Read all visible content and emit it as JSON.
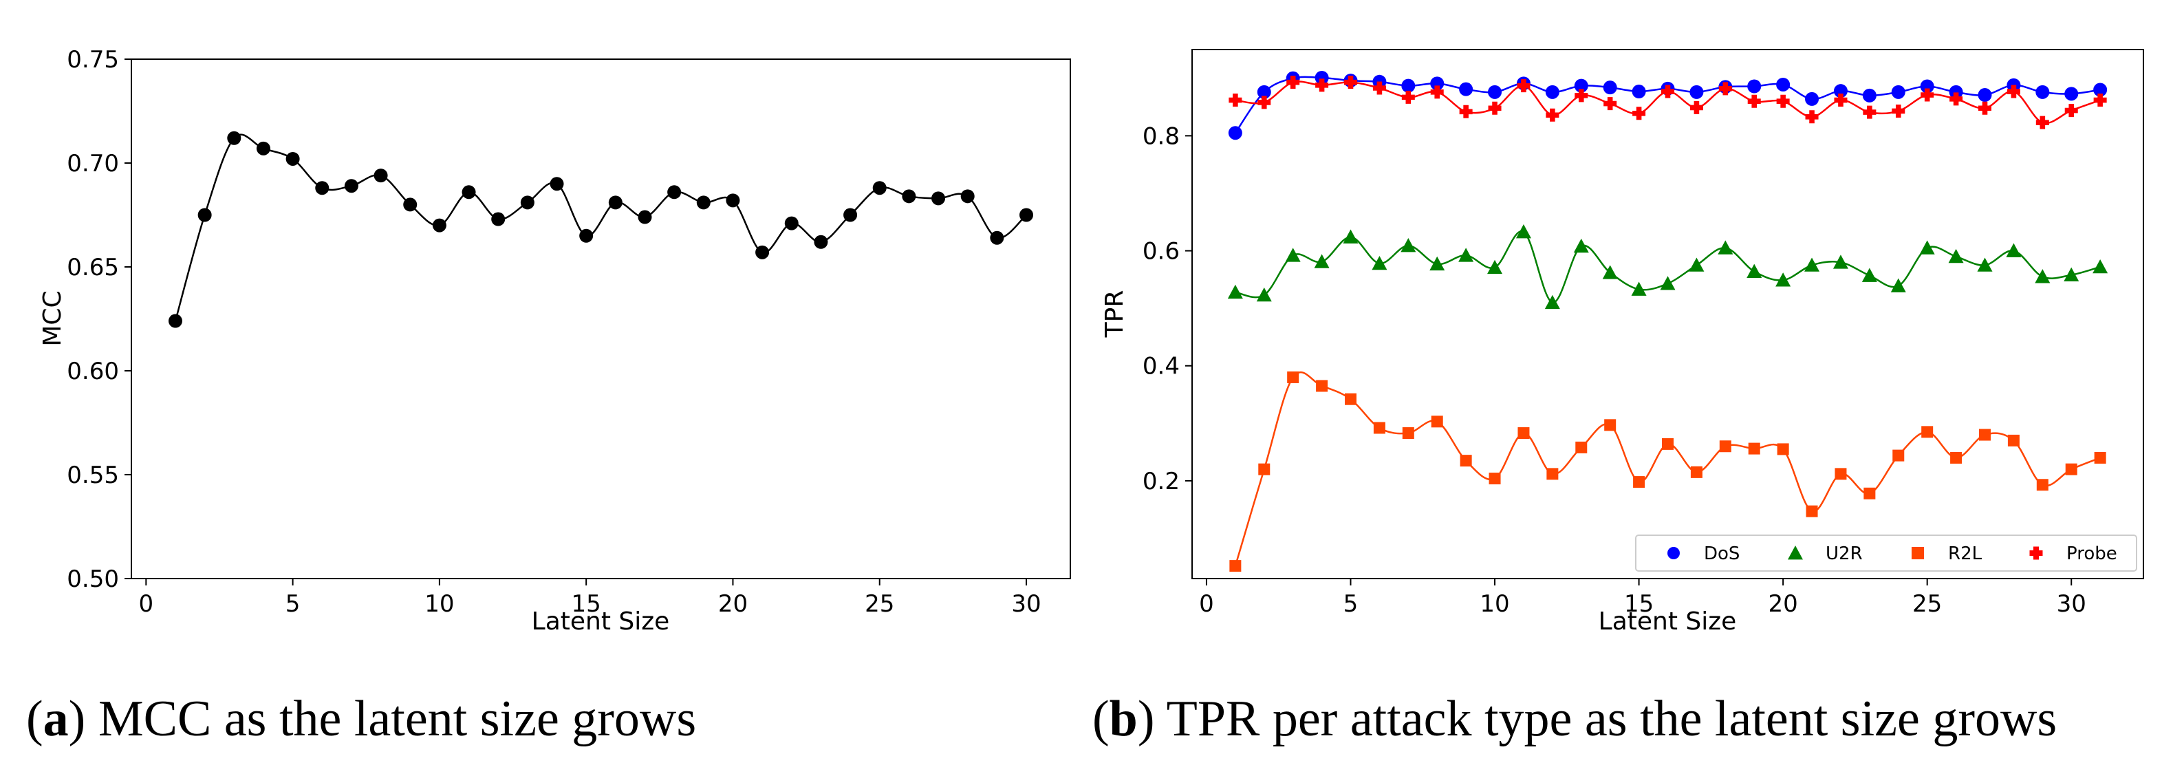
{
  "chart_data": [
    {
      "type": "line",
      "caption_letter": "a",
      "caption_text": "MCC as the latent size grows",
      "xlabel": "Latent Size",
      "ylabel": "MCC",
      "xlim": [
        -0.5,
        31.5
      ],
      "ylim": [
        0.5,
        0.75
      ],
      "xticks": [
        0,
        5,
        10,
        15,
        20,
        25,
        30
      ],
      "yticks": [
        0.5,
        0.55,
        0.6,
        0.65,
        0.7,
        0.75
      ],
      "ytick_labels": [
        "0.50",
        "0.55",
        "0.60",
        "0.65",
        "0.70",
        "0.75"
      ],
      "series": [
        {
          "name": "MCC",
          "color": "#000000",
          "marker": "circle",
          "x": [
            1,
            2,
            3,
            4,
            5,
            6,
            7,
            8,
            9,
            10,
            11,
            12,
            13,
            14,
            15,
            16,
            17,
            18,
            19,
            20,
            21,
            22,
            23,
            24,
            25,
            26,
            27,
            28,
            29,
            30
          ],
          "values": [
            0.624,
            0.675,
            0.712,
            0.707,
            0.702,
            0.688,
            0.689,
            0.694,
            0.68,
            0.67,
            0.686,
            0.673,
            0.681,
            0.69,
            0.665,
            0.681,
            0.674,
            0.686,
            0.681,
            0.682,
            0.657,
            0.671,
            0.662,
            0.675,
            0.688,
            0.684,
            0.683,
            0.684,
            0.664,
            0.675
          ]
        }
      ]
    },
    {
      "type": "line",
      "caption_letter": "b",
      "caption_text": "TPR per attack type as the latent size grows",
      "xlabel": "Latent Size",
      "ylabel": "TPR",
      "xlim": [
        -0.5,
        32.5
      ],
      "ylim": [
        0.03,
        0.95
      ],
      "xticks": [
        0,
        5,
        10,
        15,
        20,
        25,
        30
      ],
      "yticks": [
        0.2,
        0.4,
        0.6,
        0.8
      ],
      "ytick_labels": [
        "0.2",
        "0.4",
        "0.6",
        "0.8"
      ],
      "legend": "lower-right",
      "series": [
        {
          "name": "DoS",
          "color": "#0000ff",
          "marker": "circle",
          "x": [
            1,
            2,
            3,
            4,
            5,
            6,
            7,
            8,
            9,
            10,
            11,
            12,
            13,
            14,
            15,
            16,
            17,
            18,
            19,
            20,
            21,
            22,
            23,
            24,
            25,
            26,
            27,
            28,
            29,
            30,
            31
          ],
          "values": [
            0.805,
            0.876,
            0.9,
            0.901,
            0.896,
            0.894,
            0.887,
            0.891,
            0.881,
            0.876,
            0.891,
            0.876,
            0.887,
            0.884,
            0.877,
            0.882,
            0.876,
            0.885,
            0.886,
            0.889,
            0.864,
            0.878,
            0.87,
            0.876,
            0.886,
            0.876,
            0.871,
            0.888,
            0.876,
            0.873,
            0.88
          ]
        },
        {
          "name": "U2R",
          "color": "#008000",
          "marker": "triangle",
          "x": [
            1,
            2,
            3,
            4,
            5,
            6,
            7,
            8,
            9,
            10,
            11,
            12,
            13,
            14,
            15,
            16,
            17,
            18,
            19,
            20,
            21,
            22,
            23,
            24,
            25,
            26,
            27,
            28,
            29,
            30,
            31
          ],
          "values": [
            0.528,
            0.523,
            0.592,
            0.581,
            0.624,
            0.578,
            0.609,
            0.577,
            0.592,
            0.571,
            0.633,
            0.51,
            0.608,
            0.562,
            0.533,
            0.543,
            0.575,
            0.605,
            0.564,
            0.549,
            0.575,
            0.58,
            0.557,
            0.539,
            0.605,
            0.59,
            0.575,
            0.6,
            0.555,
            0.558,
            0.572
          ]
        },
        {
          "name": "R2L",
          "color": "#ff4500",
          "marker": "square",
          "x": [
            1,
            2,
            3,
            4,
            5,
            6,
            7,
            8,
            9,
            10,
            11,
            12,
            13,
            14,
            15,
            16,
            17,
            18,
            19,
            20,
            21,
            22,
            23,
            24,
            25,
            26,
            27,
            28,
            29,
            30,
            31
          ],
          "values": [
            0.052,
            0.22,
            0.38,
            0.365,
            0.342,
            0.292,
            0.283,
            0.303,
            0.235,
            0.204,
            0.283,
            0.212,
            0.258,
            0.297,
            0.198,
            0.264,
            0.215,
            0.26,
            0.256,
            0.255,
            0.147,
            0.212,
            0.178,
            0.244,
            0.285,
            0.24,
            0.28,
            0.27,
            0.193,
            0.22,
            0.24
          ]
        },
        {
          "name": "Probe",
          "color": "#ff0000",
          "marker": "plus",
          "x": [
            1,
            2,
            3,
            4,
            5,
            6,
            7,
            8,
            9,
            10,
            11,
            12,
            13,
            14,
            15,
            16,
            17,
            18,
            19,
            20,
            21,
            22,
            23,
            24,
            25,
            26,
            27,
            28,
            29,
            30,
            31
          ],
          "values": [
            0.862,
            0.858,
            0.893,
            0.888,
            0.893,
            0.883,
            0.867,
            0.876,
            0.842,
            0.848,
            0.887,
            0.836,
            0.87,
            0.856,
            0.839,
            0.877,
            0.849,
            0.882,
            0.86,
            0.86,
            0.833,
            0.862,
            0.841,
            0.843,
            0.871,
            0.864,
            0.848,
            0.877,
            0.823,
            0.844,
            0.862
          ]
        }
      ]
    }
  ]
}
